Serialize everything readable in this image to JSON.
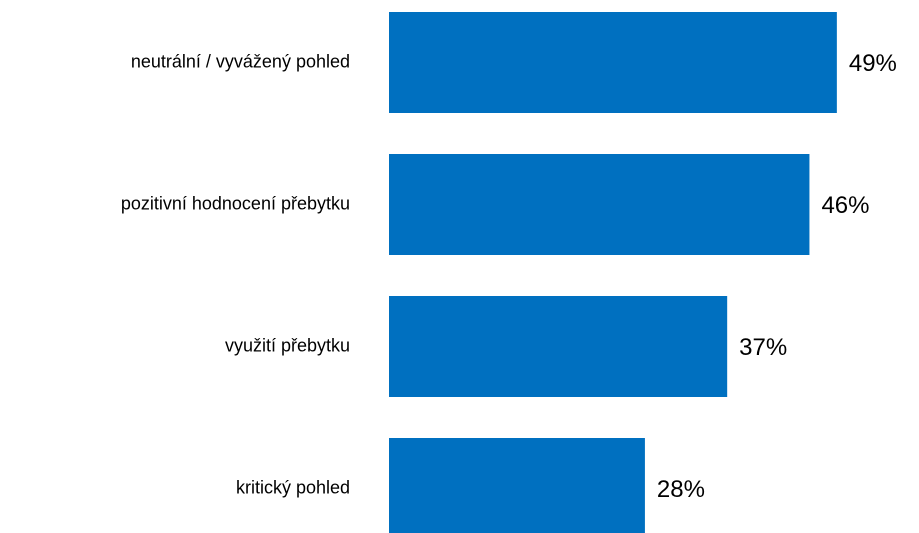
{
  "chart_data": {
    "type": "barh",
    "categories": [
      "neutrální / vyvážený pohled",
      "pozitivní hodnocení přebytku",
      "využití přebytku",
      "kritický pohled"
    ],
    "values": [
      49,
      46,
      37,
      28
    ],
    "value_labels": [
      "49%",
      "46%",
      "37%",
      "28%"
    ],
    "color": "#0070c0",
    "xlim": [
      0,
      50
    ]
  }
}
